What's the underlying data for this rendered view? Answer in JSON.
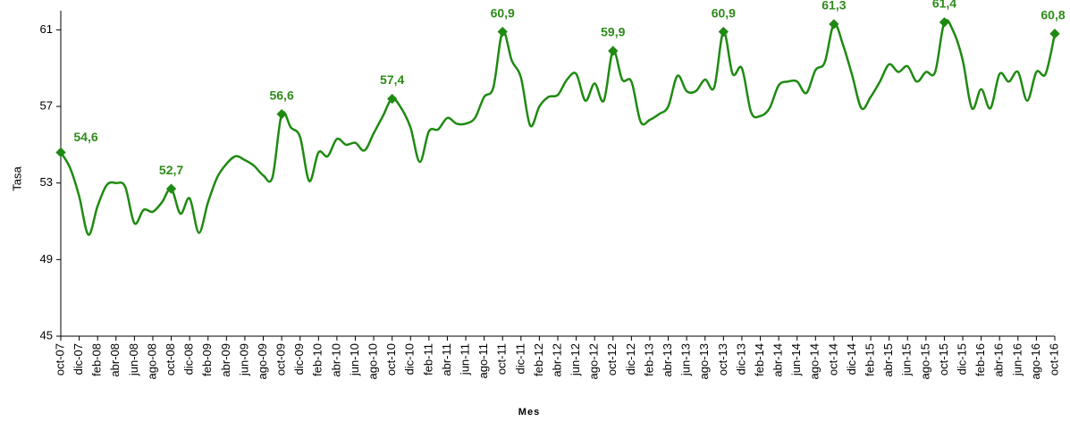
{
  "chart_data": {
    "type": "line",
    "x_label": "Mes",
    "y_label": "Tasa",
    "categories": [
      "oct-07",
      null,
      "dic-07",
      null,
      "feb-08",
      null,
      "abr-08",
      null,
      "jun-08",
      null,
      "ago-08",
      null,
      "oct-08",
      null,
      "dic-08",
      null,
      "feb-09",
      null,
      "abr-09",
      null,
      "jun-09",
      null,
      "ago-09",
      null,
      "oct-09",
      null,
      "dic-09",
      null,
      "feb-10",
      null,
      "abr-10",
      null,
      "jun-10",
      null,
      "ago-10",
      null,
      "oct-10",
      null,
      "dic-10",
      null,
      "feb-11",
      null,
      "abr-11",
      null,
      "jun-11",
      null,
      "ago-11",
      null,
      "oct-11",
      null,
      "dic-11",
      null,
      "feb-12",
      null,
      "abr-12",
      null,
      "jun-12",
      null,
      "ago-12",
      null,
      "oct-12",
      null,
      "dic-12",
      null,
      "feb-13",
      null,
      "abr-13",
      null,
      "jun-13",
      null,
      "ago-13",
      null,
      "oct-13",
      null,
      "dic-13",
      null,
      "feb-14",
      null,
      "abr-14",
      null,
      "jun-14",
      null,
      "ago-14",
      null,
      "oct-14",
      null,
      "dic-14",
      null,
      "feb-15",
      null,
      "abr-15",
      null,
      "jun-15",
      null,
      "ago-15",
      null,
      "oct-15",
      null,
      "dic-15",
      null,
      "feb-16",
      null,
      "abr-16",
      null,
      "jun-16",
      null,
      "ago-16",
      null,
      "oct-16"
    ],
    "values": [
      54.6,
      53.8,
      52.3,
      50.3,
      51.8,
      52.9,
      53.0,
      52.8,
      50.9,
      51.6,
      51.5,
      52.0,
      52.7,
      51.4,
      52.2,
      50.4,
      52.0,
      53.3,
      54.0,
      54.4,
      54.2,
      53.9,
      53.4,
      53.3,
      56.6,
      55.9,
      55.4,
      53.1,
      54.6,
      54.4,
      55.3,
      55.0,
      55.1,
      54.7,
      55.6,
      56.5,
      57.4,
      56.9,
      55.9,
      54.1,
      55.7,
      55.8,
      56.4,
      56.1,
      56.1,
      56.4,
      57.5,
      58.0,
      60.9,
      59.4,
      58.5,
      56.0,
      57.0,
      57.5,
      57.6,
      58.4,
      58.7,
      57.3,
      58.2,
      57.3,
      59.9,
      58.4,
      58.3,
      56.2,
      56.3,
      56.6,
      57.0,
      58.6,
      57.8,
      57.8,
      58.4,
      58.0,
      60.9,
      58.7,
      59.0,
      56.7,
      56.5,
      56.9,
      58.1,
      58.3,
      58.3,
      57.7,
      58.9,
      59.3,
      61.3,
      60.2,
      58.6,
      56.9,
      57.5,
      58.3,
      59.2,
      58.8,
      59.1,
      58.3,
      58.8,
      58.8,
      61.4,
      60.9,
      59.4,
      56.9,
      57.9,
      56.9,
      58.7,
      58.3,
      58.8,
      57.3,
      58.8,
      58.7,
      60.8
    ],
    "value_labels": [
      "54,6",
      null,
      null,
      null,
      null,
      null,
      null,
      null,
      null,
      null,
      null,
      null,
      "52,7",
      null,
      null,
      null,
      null,
      null,
      null,
      null,
      null,
      null,
      null,
      null,
      "56,6",
      null,
      null,
      null,
      null,
      null,
      null,
      null,
      null,
      null,
      null,
      null,
      "57,4",
      null,
      null,
      null,
      null,
      null,
      null,
      null,
      null,
      null,
      null,
      null,
      "60,9",
      null,
      null,
      null,
      null,
      null,
      null,
      null,
      null,
      null,
      null,
      null,
      "59,9",
      null,
      null,
      null,
      null,
      null,
      null,
      null,
      null,
      null,
      null,
      null,
      "60,9",
      null,
      null,
      null,
      null,
      null,
      null,
      null,
      null,
      null,
      null,
      null,
      "61,3",
      null,
      null,
      null,
      null,
      null,
      null,
      null,
      null,
      null,
      null,
      null,
      "61,4",
      null,
      null,
      null,
      null,
      null,
      null,
      null,
      null,
      null,
      null,
      null,
      "60,8"
    ],
    "color": "#1f8a12",
    "ylim": [
      45,
      62
    ],
    "yticks": [
      45,
      49,
      53,
      57,
      61
    ],
    "grid": false
  }
}
